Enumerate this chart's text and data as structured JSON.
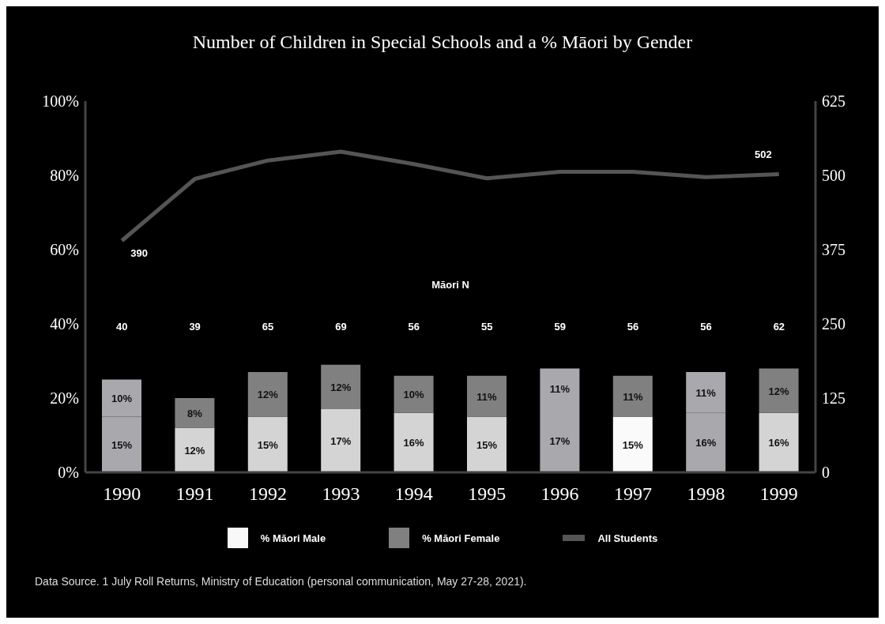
{
  "chart_data": {
    "type": "bar",
    "title": "Number of Children in Special Schools and a % Māori by Gender",
    "categories": [
      "1990",
      "1991",
      "1992",
      "1993",
      "1994",
      "1995",
      "1996",
      "1997",
      "1998",
      "1999"
    ],
    "stacked": true,
    "legend": "bottom",
    "series": [
      {
        "name": "% Māori Male",
        "color": "#f8f8f8",
        "colors": [
          "#a9a9ad",
          "#d4d4d4",
          "#d4d4d4",
          "#d4d4d4",
          "#d4d4d4",
          "#d4d4d4",
          "#a9a9ad",
          "#fafafa",
          "#a9a9ad",
          "#d4d4d4"
        ],
        "values": [
          15,
          12,
          15,
          17,
          16,
          15,
          17,
          15,
          16,
          16
        ],
        "value_labels": [
          "15%",
          "12%",
          "15%",
          "17%",
          "16%",
          "15%",
          "17%",
          "15%",
          "16%",
          "16%"
        ]
      },
      {
        "name": "% Māori Female",
        "color": "#808080",
        "colors": [
          "#a9a9ad",
          "#808080",
          "#808080",
          "#808080",
          "#808080",
          "#808080",
          "#a9a9ad",
          "#808080",
          "#a9a9ad",
          "#808080"
        ],
        "values": [
          10,
          8,
          12,
          12,
          10,
          11,
          11,
          11,
          11,
          12
        ],
        "value_labels": [
          "10%",
          "8%",
          "12%",
          "12%",
          "10%",
          "11%",
          "11%",
          "11%",
          "11%",
          "12%"
        ]
      },
      {
        "name": "All Students",
        "type": "line",
        "axis": "y2",
        "color": "#555555",
        "values": [
          390,
          494,
          525,
          540,
          519,
          495,
          506,
          506,
          497,
          502
        ],
        "value_labels": [
          "390",
          null,
          null,
          null,
          null,
          null,
          null,
          null,
          null,
          "502"
        ]
      }
    ],
    "ylim": [
      0,
      100
    ],
    "yticks": [
      {
        "value": 0,
        "label": "0%"
      },
      {
        "value": 20,
        "label": "20%"
      },
      {
        "value": 40,
        "label": "40%"
      },
      {
        "value": 60,
        "label": "60%"
      },
      {
        "value": 80,
        "label": "80%"
      },
      {
        "value": 100,
        "label": "100%"
      }
    ],
    "y2lim": [
      0,
      625
    ],
    "y2ticks": [
      0,
      125,
      250,
      375,
      500,
      625
    ],
    "annotations": [
      "Māori N",
      "40",
      "39",
      "65",
      "69",
      "56",
      "55",
      "59",
      "56",
      "56",
      "62",
      "Data Source. 1 July Roll Returns, Ministry of Education (personal communication, May 27-28, 2021)."
    ]
  }
}
